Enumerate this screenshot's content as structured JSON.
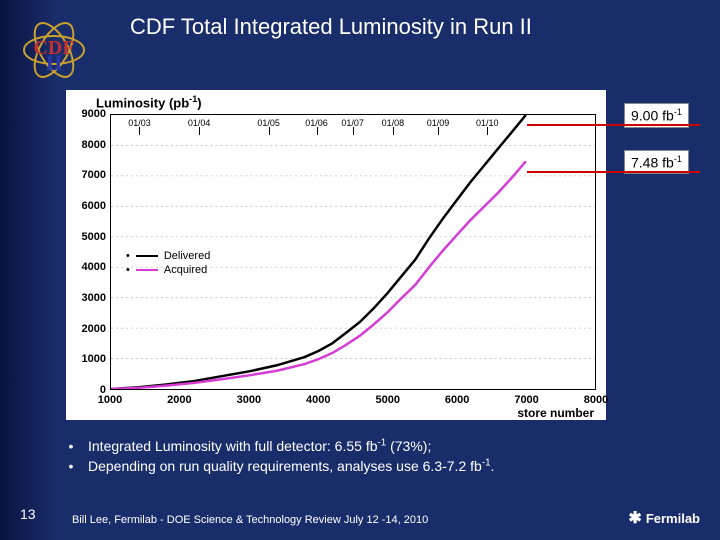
{
  "title_text": "CDF Total Integrated Luminosity in Run II",
  "logo": {
    "lines_color": "#c8a030",
    "text": "CDF",
    "text_color": "#c03030",
    "two_color": "#2838a8"
  },
  "chart": {
    "type": "line",
    "y_title_html": "Luminosity (pb<sup>-1</sup>)",
    "x_title": "store number",
    "background_color": "#ffffff",
    "grid_color": "#bfbfbf",
    "xlim": [
      1000,
      8000
    ],
    "ylim": [
      0,
      9000
    ],
    "x_ticks": [
      1000,
      2000,
      3000,
      4000,
      5000,
      6000,
      7000,
      8000
    ],
    "y_ticks": [
      0,
      1000,
      2000,
      3000,
      4000,
      5000,
      6000,
      7000,
      8000,
      9000
    ],
    "top_dates": [
      {
        "x": 1410,
        "label": "01/03"
      },
      {
        "x": 2270,
        "label": "01/04"
      },
      {
        "x": 3270,
        "label": "01/05"
      },
      {
        "x": 3960,
        "label": "01/06"
      },
      {
        "x": 4480,
        "label": "01/07"
      },
      {
        "x": 5060,
        "label": "01/08"
      },
      {
        "x": 5710,
        "label": "01/09"
      },
      {
        "x": 6420,
        "label": "01/10"
      }
    ],
    "series": [
      {
        "name": "Delivered",
        "color": "#000000",
        "line_width": 2.5,
        "points": [
          [
            1000,
            0
          ],
          [
            1400,
            60
          ],
          [
            1800,
            150
          ],
          [
            2200,
            260
          ],
          [
            2600,
            420
          ],
          [
            3000,
            580
          ],
          [
            3400,
            780
          ],
          [
            3800,
            1050
          ],
          [
            4000,
            1250
          ],
          [
            4200,
            1500
          ],
          [
            4400,
            1850
          ],
          [
            4600,
            2200
          ],
          [
            4800,
            2650
          ],
          [
            5000,
            3150
          ],
          [
            5200,
            3700
          ],
          [
            5400,
            4250
          ],
          [
            5600,
            4950
          ],
          [
            5800,
            5600
          ],
          [
            6000,
            6200
          ],
          [
            6200,
            6800
          ],
          [
            6400,
            7350
          ],
          [
            6600,
            7900
          ],
          [
            6800,
            8450
          ],
          [
            7000,
            9000
          ]
        ]
      },
      {
        "name": "Acquired",
        "color": "#d63bd6",
        "line_width": 2.5,
        "points": [
          [
            1000,
            0
          ],
          [
            1400,
            40
          ],
          [
            1800,
            110
          ],
          [
            2200,
            200
          ],
          [
            2600,
            320
          ],
          [
            3000,
            450
          ],
          [
            3400,
            600
          ],
          [
            3800,
            820
          ],
          [
            4000,
            980
          ],
          [
            4200,
            1180
          ],
          [
            4400,
            1450
          ],
          [
            4600,
            1750
          ],
          [
            4800,
            2120
          ],
          [
            5000,
            2520
          ],
          [
            5200,
            2980
          ],
          [
            5400,
            3420
          ],
          [
            5600,
            4000
          ],
          [
            5800,
            4550
          ],
          [
            6000,
            5050
          ],
          [
            6200,
            5550
          ],
          [
            6400,
            6000
          ],
          [
            6600,
            6450
          ],
          [
            6800,
            6950
          ],
          [
            7000,
            7480
          ]
        ]
      }
    ],
    "legend": {
      "items": [
        {
          "label": "Delivered",
          "color": "#000000"
        },
        {
          "label": "Acquired",
          "color": "#d63bd6"
        }
      ]
    },
    "font_size_axis": 11,
    "font_size_title": 13
  },
  "callouts": [
    {
      "html": "9.00 fb<sup>-1</sup>",
      "y_value": 9000,
      "box_color": "#ffffff",
      "line_color": "#cc0000"
    },
    {
      "html": "7.48 fb<sup>-1</sup>",
      "y_value": 7480,
      "box_color": "#ffffff",
      "line_color": "#cc0000"
    }
  ],
  "bullets": [
    "Integrated Luminosity with full detector: 6.55 fb<sup>-1</sup> (73%);",
    "Depending on run quality requirements, analyses use 6.3-7.2 fb<sup>-1</sup>."
  ],
  "page_number": "13",
  "footer_text": "Bill Lee, Fermilab - DOE Science & Technology Review   July 12 -14, 2010",
  "fermilab_label": "Fermilab",
  "slide_bg": "#1a2d6b"
}
